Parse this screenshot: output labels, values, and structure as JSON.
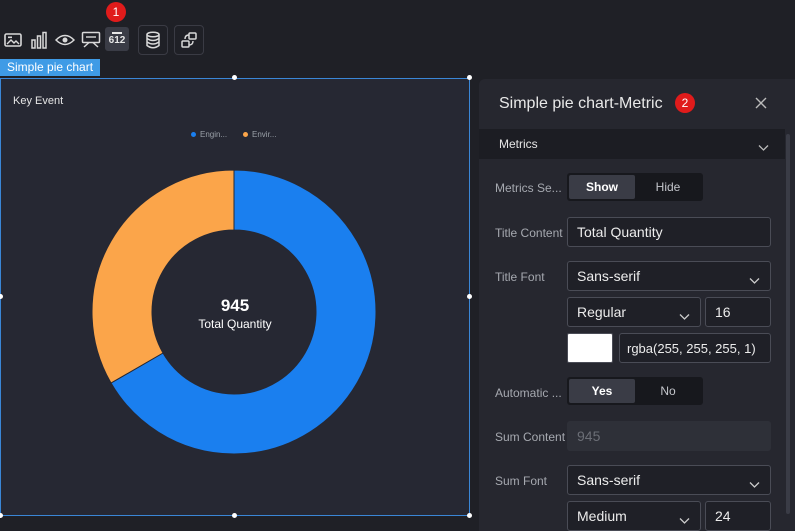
{
  "toolbar": {
    "icons": [
      "image-icon",
      "bar-chart-icon",
      "eye-icon",
      "comment-icon",
      "number-icon",
      "database-icon",
      "share-icon"
    ],
    "number_label": "612",
    "badge1": "1"
  },
  "chart": {
    "tag_label": "Simple pie chart",
    "title": "Key Event",
    "center_value": "945",
    "center_label": "Total Quantity"
  },
  "chart_data": {
    "type": "pie",
    "title": "Key Event",
    "series": [
      {
        "name": "Engin...",
        "value": 630,
        "color": "#1a7fef"
      },
      {
        "name": "Envir...",
        "value": 315,
        "color": "#fba54a"
      }
    ],
    "total": 945,
    "legend": "top-center"
  },
  "panel": {
    "title": "Simple pie chart-Metric",
    "badge2": "2",
    "section": "Metrics",
    "metrics_setting": {
      "label": "Metrics Se...",
      "options": [
        "Show",
        "Hide"
      ],
      "selected": "Show"
    },
    "title_content": {
      "label": "Title Content",
      "value": "Total Quantity"
    },
    "title_font": {
      "label": "Title Font",
      "family": "Sans-serif",
      "weight": "Regular",
      "size": "16",
      "color": "rgba(255, 255, 255, 1)"
    },
    "automatic": {
      "label": "Automatic ...",
      "options": [
        "Yes",
        "No"
      ],
      "selected": "Yes"
    },
    "sum_content": {
      "label": "Sum Content",
      "placeholder": "945"
    },
    "sum_font": {
      "label": "Sum Font",
      "family": "Sans-serif",
      "weight": "Medium",
      "size": "24"
    }
  },
  "colors": {
    "accent": "#3f9be6",
    "badge": "#e01b1b",
    "series1": "#1a7fef",
    "series2": "#fba54a"
  }
}
